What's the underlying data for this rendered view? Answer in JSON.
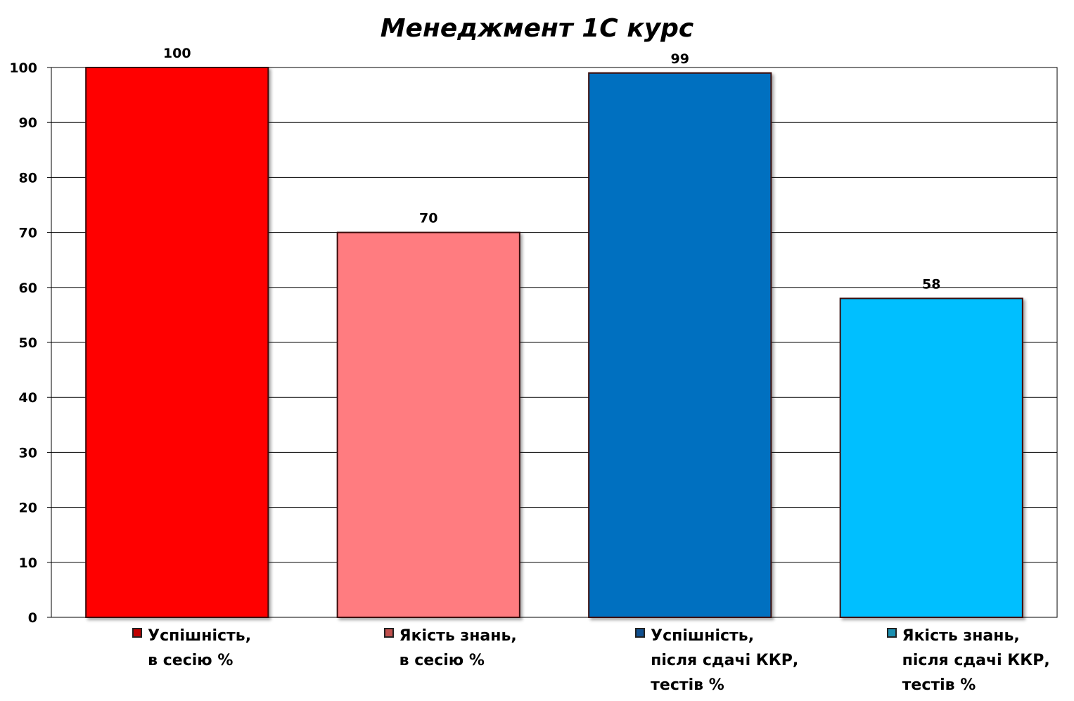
{
  "chart_data": {
    "type": "bar",
    "title": "Менеджмент 1С курс",
    "xlabel": "",
    "ylabel": "",
    "ylim": [
      0,
      100
    ],
    "yticks": [
      0,
      10,
      20,
      30,
      40,
      50,
      60,
      70,
      80,
      90,
      100
    ],
    "grid": true,
    "legend_position": "bottom",
    "categories": [
      "Успішність, в сесію %",
      "Якість знань, в сесію %",
      "Успішність, після сдачі ККР, тестів %",
      "Якість знань, після сдачі ККР, тестів %"
    ],
    "values": [
      100,
      70,
      99,
      58
    ],
    "series": [
      {
        "name": "Успішність, в сесію %",
        "lines": [
          "Успішність,",
          "в сесію %"
        ],
        "value": 100,
        "color": "#ff0000",
        "swatch": "#c00000"
      },
      {
        "name": "Якість знань, в сесію %",
        "lines": [
          "Якість знань,",
          "в сесію %"
        ],
        "value": 70,
        "color": "#ff7c80",
        "swatch": "#c0504d"
      },
      {
        "name": "Успішність, після сдачі ККР, тестів %",
        "lines": [
          "Успішність,",
          "після сдачі ККР,",
          "тестів %"
        ],
        "value": 99,
        "color": "#0070c0",
        "swatch": "#0f4f8f"
      },
      {
        "name": "Якість знань, після сдачі ККР, тестів %",
        "lines": [
          "Якість знань,",
          "після сдачі ККР,",
          "тестів %"
        ],
        "value": 58,
        "color": "#00bfff",
        "swatch": "#1a8fb0"
      }
    ]
  }
}
